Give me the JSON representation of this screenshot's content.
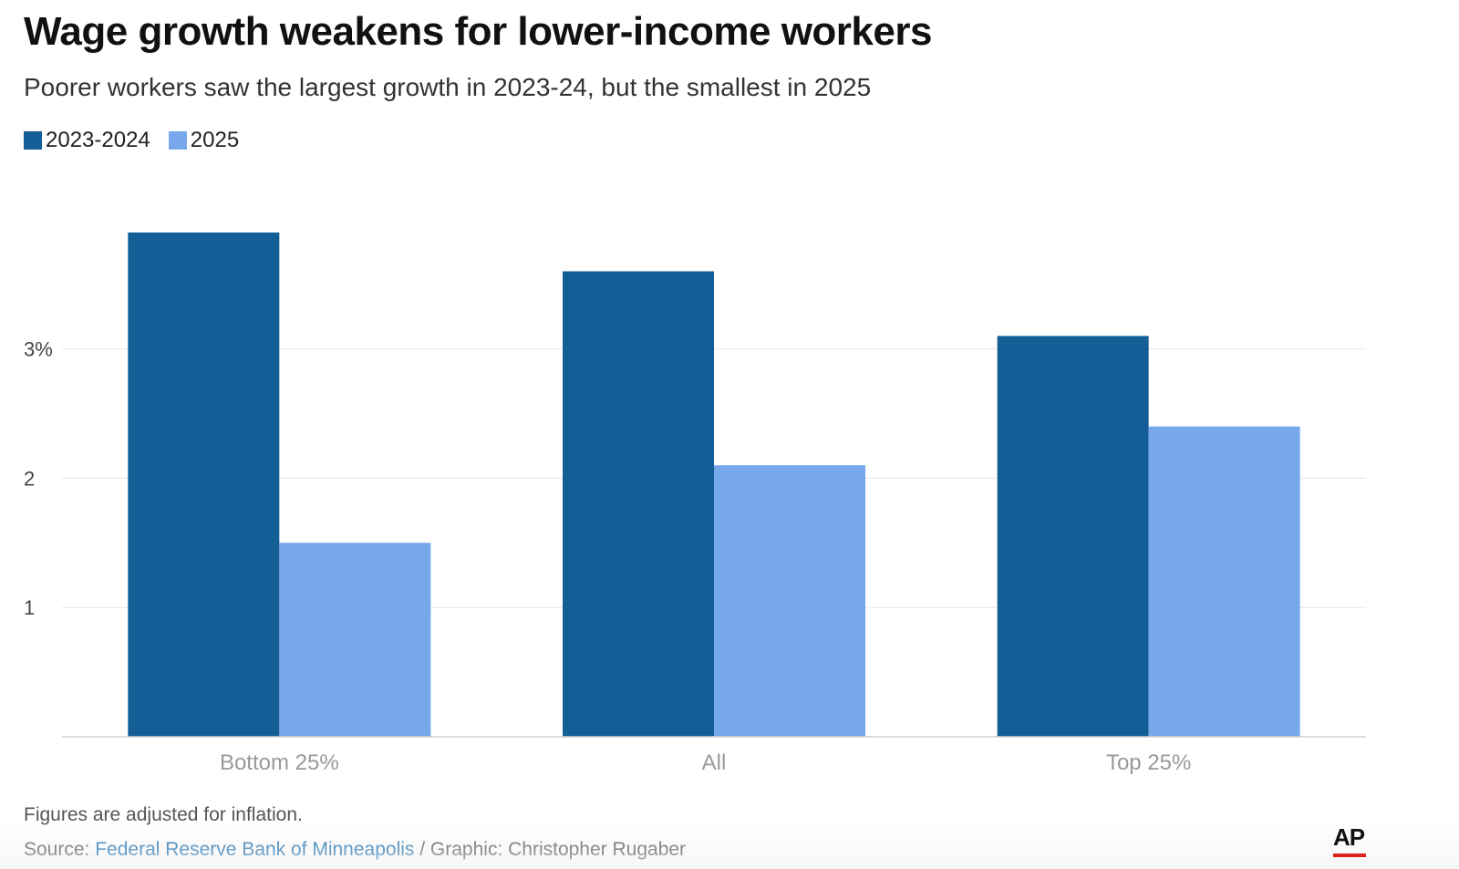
{
  "chart_data": {
    "type": "bar",
    "title": "Wage growth weakens for lower-income workers",
    "subtitle": "Poorer workers saw the largest growth in 2023-24, but the smallest in 2025",
    "categories": [
      "Bottom 25%",
      "All",
      "Top 25%"
    ],
    "series": [
      {
        "name": "2023-2024",
        "color": "#145e98",
        "values": [
          3.9,
          3.6,
          3.1
        ]
      },
      {
        "name": "2025",
        "color": "#76a8eb",
        "values": [
          1.5,
          2.1,
          2.4
        ]
      }
    ],
    "yticks": [
      {
        "value": 1,
        "label": "1"
      },
      {
        "value": 2,
        "label": "2"
      },
      {
        "value": 3,
        "label": "3%"
      }
    ],
    "ylim": [
      0,
      4.2
    ],
    "xlabel": "",
    "ylabel": "",
    "grid": true,
    "legend_position": "top-left"
  },
  "footnote": "Figures are adjusted for inflation.",
  "source": {
    "prefix": "Source: ",
    "link_text": "Federal Reserve Bank of Minneapolis",
    "suffix": " / Graphic: Christopher Rugaber"
  },
  "logo_text": "AP",
  "colors": {
    "grid": "#e6e6e6",
    "axis": "#cfcfcf",
    "tick_label": "#444444",
    "category_label": "#999999"
  }
}
